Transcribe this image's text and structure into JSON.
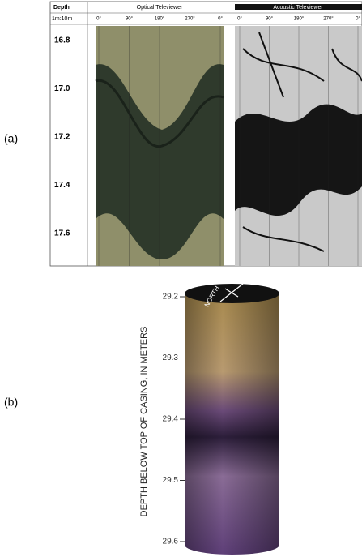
{
  "panel_a": {
    "label": "(a)",
    "depth_header": "Depth",
    "scale": "1m:10m",
    "optical_title": "Optical Televiewer",
    "acoustic_title": "Acoustic Televiewer",
    "optical_azimuths": [
      "0°",
      "90°",
      "180°",
      "270°",
      "0°"
    ],
    "acoustic_azimuths": [
      "0°",
      "90°",
      "180°",
      "270°",
      "0°"
    ],
    "depths": [
      "16.8",
      "17.0",
      "17.2",
      "17.4",
      "17.6"
    ]
  },
  "panel_b": {
    "label": "(b)",
    "axis_label": "DEPTH BELOW TOP OF CASING, IN METERS",
    "north": "NORTH",
    "depths": [
      "29.2",
      "29.3",
      "29.4",
      "29.5",
      "29.6"
    ]
  }
}
